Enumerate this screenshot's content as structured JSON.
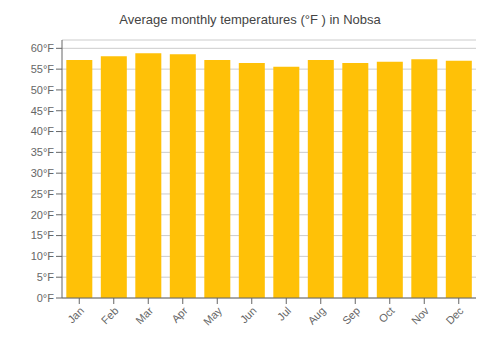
{
  "chart_data": {
    "type": "bar",
    "title": "Average monthly temperatures (°F ) in Nobsa",
    "categories": [
      "Jan",
      "Feb",
      "Mar",
      "Apr",
      "May",
      "Jun",
      "Jul",
      "Aug",
      "Sep",
      "Oct",
      "Nov",
      "Dec"
    ],
    "values": [
      57.2,
      58.1,
      58.8,
      58.6,
      57.2,
      56.5,
      55.6,
      57.2,
      56.5,
      56.8,
      57.4,
      57.0
    ],
    "color": "#FFC107",
    "ylim": [
      0,
      62
    ],
    "yticks": [
      {
        "value": 0,
        "label": "0°F"
      },
      {
        "value": 5,
        "label": "5°F"
      },
      {
        "value": 10,
        "label": "10°F"
      },
      {
        "value": 15,
        "label": "15°F"
      },
      {
        "value": 20,
        "label": "20°F"
      },
      {
        "value": 25,
        "label": "25°F"
      },
      {
        "value": 30,
        "label": "30°F"
      },
      {
        "value": 35,
        "label": "35°F"
      },
      {
        "value": 40,
        "label": "40°F"
      },
      {
        "value": 45,
        "label": "45°F"
      },
      {
        "value": 50,
        "label": "50°F"
      },
      {
        "value": 55,
        "label": "55°F"
      },
      {
        "value": 60,
        "label": "60°F"
      }
    ],
    "grid": true
  }
}
